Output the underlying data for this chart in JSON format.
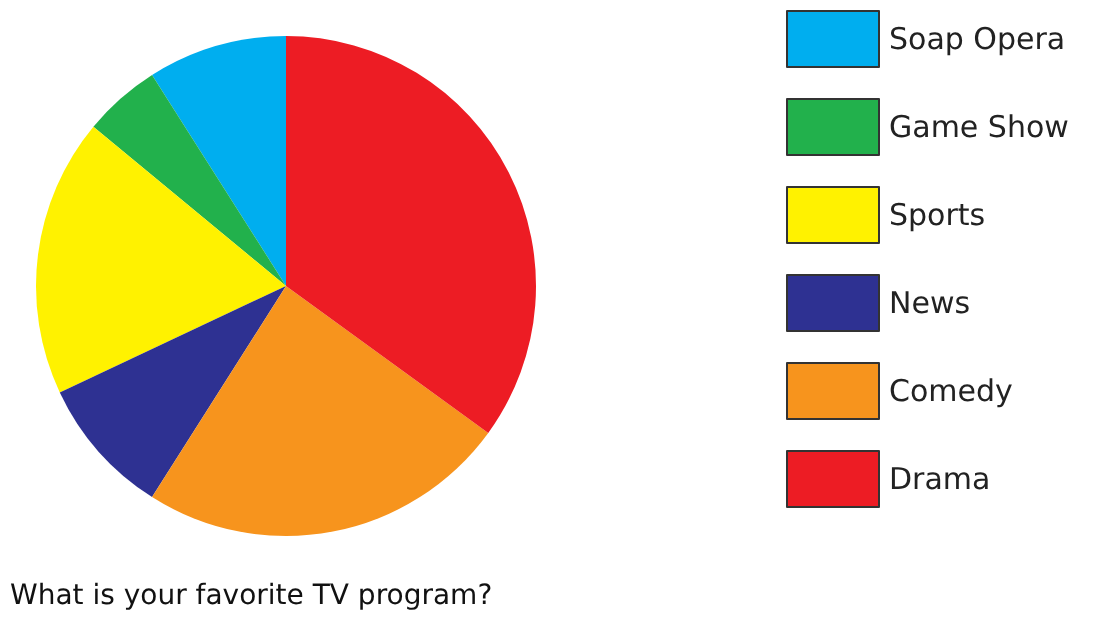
{
  "chart_data": {
    "type": "pie",
    "title": "What is your favorite TV program?",
    "categories": [
      "Soap Opera",
      "Game Show",
      "Sports",
      "News",
      "Comedy",
      "Drama"
    ],
    "values": [
      9,
      5,
      18,
      9,
      24,
      35
    ],
    "colors": [
      "#00aeef",
      "#22b14c",
      "#fff200",
      "#2e3192",
      "#f7941d",
      "#ed1c24"
    ],
    "legend": "right"
  }
}
